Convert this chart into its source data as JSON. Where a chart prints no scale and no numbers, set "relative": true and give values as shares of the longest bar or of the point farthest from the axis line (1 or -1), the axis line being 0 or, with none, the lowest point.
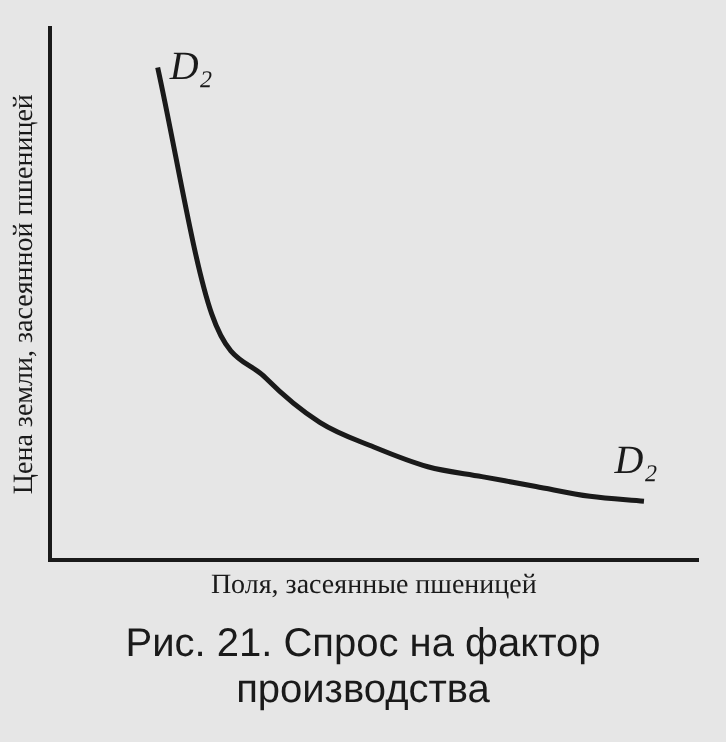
{
  "chart_data": {
    "type": "line",
    "relative": true,
    "xlabel": "Поля, засеянные пшеницей",
    "ylabel": "Цена земли, засеянной пшеницей",
    "categories": [
      null,
      null,
      null,
      null,
      null,
      null,
      null,
      null,
      null,
      null,
      null,
      null,
      null
    ],
    "series": [
      {
        "color": "#1a1a1a",
        "values": [
          null,
          null,
          1,
          0.5,
          0.37,
          0.28,
          0.23,
          0.19,
          0.17,
          0.15,
          0.13,
          0.12,
          null
        ]
      }
    ],
    "annotations": [
      "D₂",
      "D₂",
      "Рис. 21. Спрос на фактор производства"
    ],
    "grid": false,
    "legend": false,
    "marker": "none",
    "line_style": "solid"
  }
}
